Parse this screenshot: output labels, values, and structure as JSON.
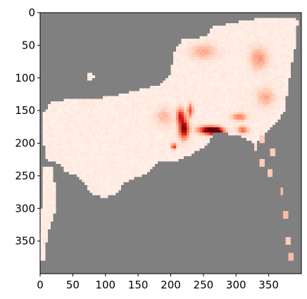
{
  "chart_data": {
    "type": "heatmap",
    "title": "",
    "xlabel": "",
    "ylabel": "",
    "xlim": [
      0,
      400
    ],
    "ylim": [
      400,
      0
    ],
    "xticks": [
      0,
      50,
      100,
      150,
      200,
      250,
      300,
      350
    ],
    "yticks": [
      0,
      50,
      100,
      150,
      200,
      250,
      300,
      350
    ],
    "colormap": "Reds",
    "nodata_color": "#808080",
    "grid": false,
    "colorbar": false,
    "valid_regions": [
      {
        "name": "main-mass",
        "points": [
          [
            5,
            155
          ],
          [
            15,
            138
          ],
          [
            40,
            133
          ],
          [
            70,
            132
          ],
          [
            95,
            130
          ],
          [
            125,
            125
          ],
          [
            150,
            118
          ],
          [
            180,
            112
          ],
          [
            200,
            95
          ],
          [
            205,
            60
          ],
          [
            218,
            40
          ],
          [
            238,
            40
          ],
          [
            255,
            35
          ],
          [
            265,
            22
          ],
          [
            300,
            15
          ],
          [
            340,
            8
          ],
          [
            395,
            10
          ],
          [
            390,
            55
          ],
          [
            380,
            110
          ],
          [
            375,
            150
          ],
          [
            360,
            170
          ],
          [
            345,
            185
          ],
          [
            330,
            200
          ],
          [
            310,
            190
          ],
          [
            285,
            185
          ],
          [
            268,
            182
          ],
          [
            255,
            205
          ],
          [
            230,
            218
          ],
          [
            215,
            225
          ],
          [
            200,
            230
          ],
          [
            180,
            228
          ],
          [
            170,
            242
          ],
          [
            150,
            252
          ],
          [
            128,
            262
          ],
          [
            118,
            278
          ],
          [
            100,
            283
          ],
          [
            80,
            280
          ],
          [
            65,
            258
          ],
          [
            52,
            248
          ],
          [
            40,
            245
          ],
          [
            30,
            232
          ],
          [
            10,
            225
          ],
          [
            5,
            200
          ]
        ]
      },
      {
        "name": "left-strip",
        "points": [
          [
            5,
            235
          ],
          [
            18,
            235
          ],
          [
            22,
            260
          ],
          [
            25,
            300
          ],
          [
            18,
            320
          ],
          [
            12,
            340
          ],
          [
            8,
            360
          ],
          [
            6,
            380
          ],
          [
            2,
            380
          ],
          [
            2,
            300
          ]
        ]
      },
      {
        "name": "top-left-speck",
        "points": [
          [
            68,
            100
          ],
          [
            78,
            90
          ],
          [
            84,
            97
          ],
          [
            76,
            104
          ]
        ]
      }
    ],
    "hotspots": [
      {
        "x": 260,
        "y": 180,
        "sx": 12,
        "sy": 4,
        "intensity": 1.0
      },
      {
        "x": 268,
        "y": 182,
        "sx": 8,
        "sy": 3,
        "intensity": 0.9
      },
      {
        "x": 220,
        "y": 178,
        "sx": 5,
        "sy": 10,
        "intensity": 0.95
      },
      {
        "x": 215,
        "y": 158,
        "sx": 4,
        "sy": 8,
        "intensity": 0.65
      },
      {
        "x": 230,
        "y": 150,
        "sx": 3,
        "sy": 7,
        "intensity": 0.55
      },
      {
        "x": 205,
        "y": 205,
        "sx": 3,
        "sy": 3,
        "intensity": 0.6
      },
      {
        "x": 305,
        "y": 160,
        "sx": 8,
        "sy": 4,
        "intensity": 0.4
      },
      {
        "x": 310,
        "y": 180,
        "sx": 6,
        "sy": 4,
        "intensity": 0.45
      },
      {
        "x": 335,
        "y": 70,
        "sx": 10,
        "sy": 12,
        "intensity": 0.3
      },
      {
        "x": 250,
        "y": 60,
        "sx": 15,
        "sy": 8,
        "intensity": 0.25
      },
      {
        "x": 190,
        "y": 160,
        "sx": 10,
        "sy": 10,
        "intensity": 0.2
      },
      {
        "x": 345,
        "y": 130,
        "sx": 10,
        "sy": 10,
        "intensity": 0.25
      }
    ],
    "isolated_points": [
      {
        "x": 340,
        "y": 230,
        "intensity": 0.2
      },
      {
        "x": 353,
        "y": 245,
        "intensity": 0.2
      },
      {
        "x": 370,
        "y": 275,
        "intensity": 0.25
      },
      {
        "x": 375,
        "y": 310,
        "intensity": 0.25
      },
      {
        "x": 380,
        "y": 350,
        "intensity": 0.2
      },
      {
        "x": 355,
        "y": 215,
        "intensity": 0.2
      },
      {
        "x": 385,
        "y": 375,
        "intensity": 0.25
      },
      {
        "x": 340,
        "y": 195,
        "intensity": 0.2
      },
      {
        "x": 330,
        "y": 205,
        "intensity": 0.15
      }
    ]
  }
}
